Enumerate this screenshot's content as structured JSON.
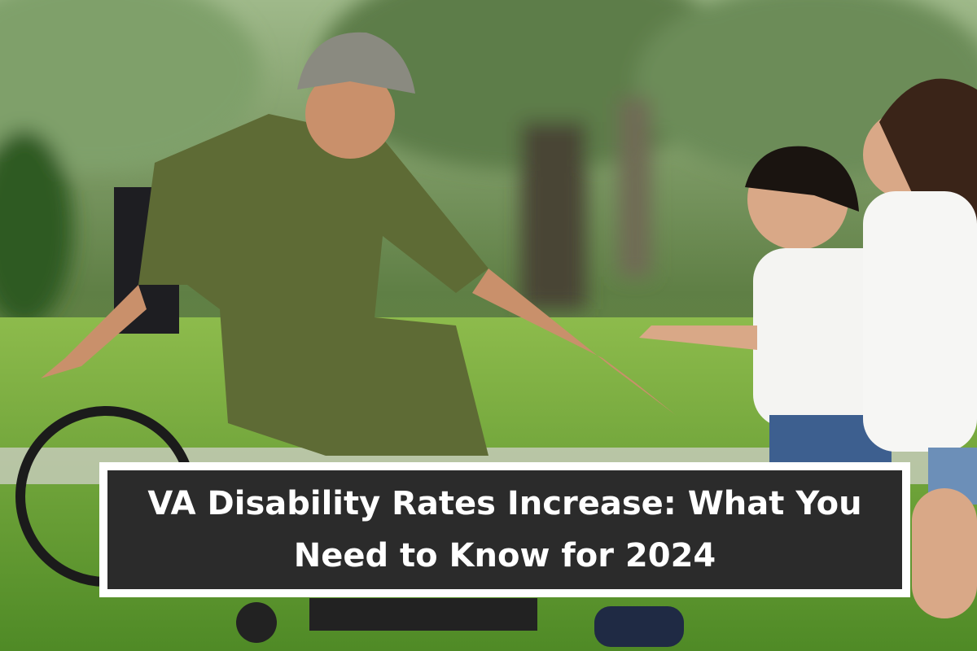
{
  "banner": {
    "title_lines": [
      "VA Disability Rates Increase: What You",
      "Need to Know for 2024"
    ]
  }
}
